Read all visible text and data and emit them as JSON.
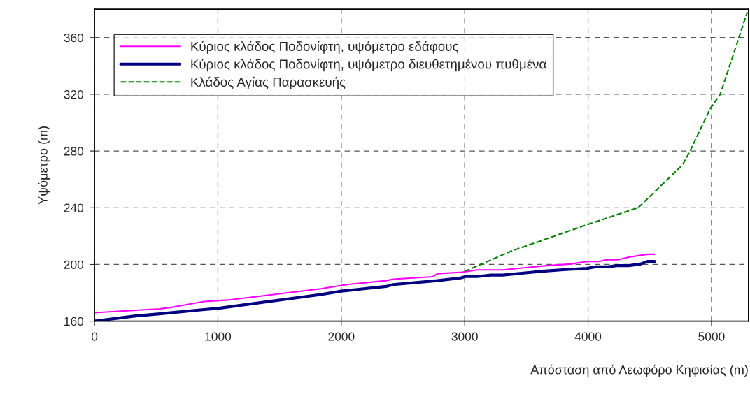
{
  "chart_data": {
    "type": "line",
    "xlabel": "Απόσταση από Λεωφόρο Κηφισίας (m)",
    "ylabel": "Υψόμετρο (m)",
    "xlim": [
      0,
      5300
    ],
    "ylim": [
      160,
      380
    ],
    "xticks": [
      0,
      1000,
      2000,
      3000,
      4000,
      5000
    ],
    "yticks": [
      160,
      200,
      240,
      280,
      320,
      360
    ],
    "grid": true,
    "legend": "top left",
    "series": [
      {
        "name": "Κύριος κλάδος Ποδονίφτη, υψόμετρο εδάφους",
        "color": "#ff00ff",
        "line_style": "solid",
        "x": [
          0,
          528,
          640,
          889,
          1078,
          1834,
          2042,
          2363,
          2420,
          2742,
          2779,
          2978,
          3101,
          3308,
          3668,
          3857,
          3989,
          4084,
          4149,
          4244,
          4329,
          4481,
          4538
        ],
        "values": [
          166,
          168.7,
          170,
          173.9,
          174.9,
          182.9,
          185.8,
          188.6,
          189.6,
          191.4,
          193.5,
          194.6,
          196.2,
          196.2,
          199.2,
          200.3,
          202.1,
          202.1,
          203.3,
          203.3,
          205.2,
          207.2,
          207.2
        ]
      },
      {
        "name": "Κύριος κλάδος Ποδονίφτη, υψόμετρο διευθετημένου πυθμένα",
        "color": "#000080",
        "line_style": "solid",
        "x": [
          0,
          321,
          528,
          889,
          997,
          1834,
          2000,
          2363,
          2420,
          2779,
          2968,
          3006,
          3101,
          3214,
          3308,
          3649,
          3819,
          3989,
          4065,
          4159,
          4234,
          4329,
          4424,
          4481,
          4538
        ],
        "values": [
          160,
          163.6,
          165.2,
          168.2,
          169,
          178.8,
          181.2,
          184.5,
          185.8,
          188.6,
          190.5,
          191.5,
          191.5,
          192.5,
          192.5,
          195.4,
          196.4,
          197.2,
          198.4,
          198.4,
          199.2,
          199.2,
          200.3,
          202.1,
          202.1
        ]
      },
      {
        "name": "Κλάδος Αγίας Παρασκευής",
        "color": "#008000",
        "line_style": "dashed",
        "x": [
          3000,
          3365,
          4000,
          4405,
          4765,
          4822,
          4990,
          5071,
          5290
        ],
        "values": [
          195.1,
          209,
          228.3,
          240,
          270.2,
          279.2,
          310,
          320,
          378
        ]
      }
    ]
  }
}
